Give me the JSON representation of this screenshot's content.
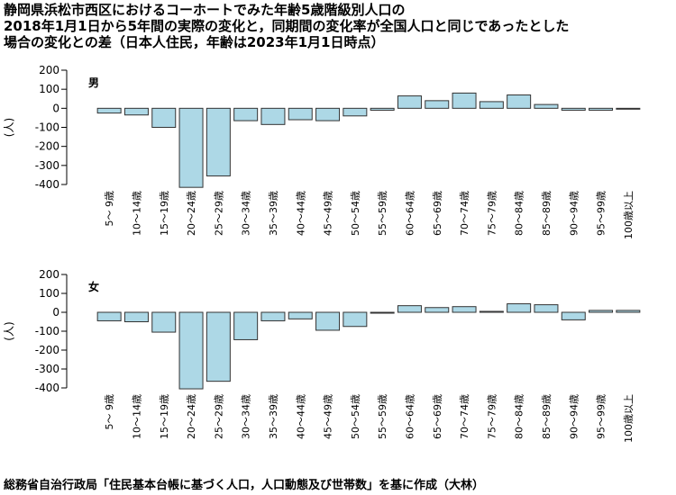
{
  "title": "静岡県浜松市西区におけるコーホートでみた年齢5歳階級別人口の\n2018年1月1日から5年間の実際の変化と，同期間の変化率が全国人口と同じであったとした\n場合の変化との差（日本人住民，年齢は2023年1月1日時点）",
  "caption": "総務省自治行政局「住民基本台帳に基づく人口，人口動態及び世帯数」を基に作成（大林）",
  "colors": {
    "bar_fill": "#add8e6",
    "bar_stroke": "#333333",
    "axis": "#000000"
  },
  "chart_data": [
    {
      "type": "bar",
      "panel_label": "男",
      "ylabel": "(人)",
      "ylim": [
        -400,
        200
      ],
      "yticks": [
        200,
        100,
        0,
        -100,
        -200,
        -300,
        -400
      ],
      "categories": [
        "5～ 9歳",
        "10～14歳",
        "15～19歳",
        "20～24歳",
        "25～29歳",
        "30～34歳",
        "35～39歳",
        "40～44歳",
        "45～49歳",
        "50～54歳",
        "55～59歳",
        "60～64歳",
        "65～69歳",
        "70～74歳",
        "75～79歳",
        "80～84歳",
        "85～89歳",
        "90～94歳",
        "95～99歳",
        "100歳以上"
      ],
      "values": [
        -25,
        -35,
        -100,
        -415,
        -355,
        -65,
        -85,
        -60,
        -65,
        -40,
        -10,
        65,
        40,
        80,
        35,
        70,
        20,
        -10,
        -10,
        0
      ]
    },
    {
      "type": "bar",
      "panel_label": "女",
      "ylabel": "(人)",
      "ylim": [
        -400,
        200
      ],
      "yticks": [
        200,
        100,
        0,
        -100,
        -200,
        -300,
        -400
      ],
      "categories": [
        "5～ 9歳",
        "10～14歳",
        "15～19歳",
        "20～24歳",
        "25～29歳",
        "30～34歳",
        "35～39歳",
        "40～44歳",
        "45～49歳",
        "50～54歳",
        "55～59歳",
        "60～64歳",
        "65～69歳",
        "70～74歳",
        "75～79歳",
        "80～84歳",
        "85～89歳",
        "90～94歳",
        "95～99歳",
        "100歳以上"
      ],
      "values": [
        -45,
        -50,
        -105,
        -405,
        -365,
        -145,
        -45,
        -35,
        -95,
        -75,
        0,
        35,
        25,
        30,
        5,
        45,
        40,
        -40,
        10,
        10
      ]
    }
  ]
}
